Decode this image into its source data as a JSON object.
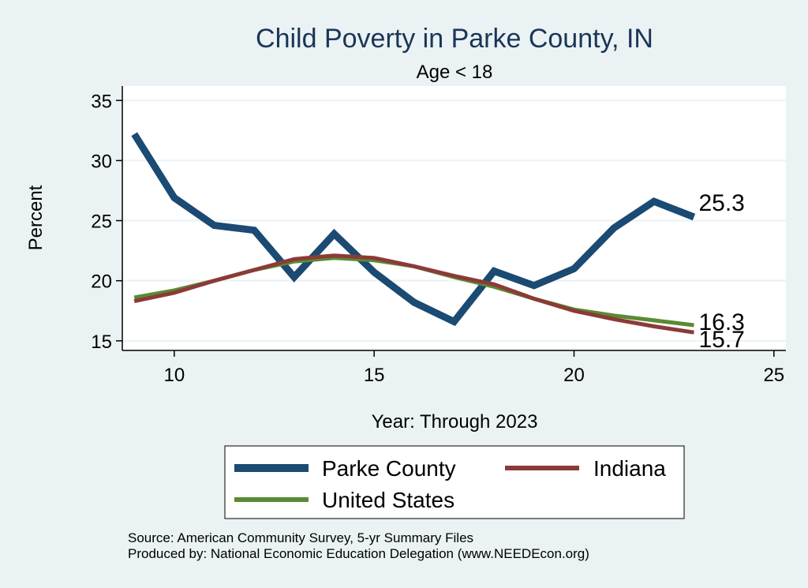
{
  "chart_data": {
    "type": "line",
    "title": "Child Poverty in Parke County, IN",
    "subtitle": "Age < 18",
    "xlabel": "Year: Through 2023",
    "ylabel": "Percent",
    "xlim": [
      8.7,
      25.3
    ],
    "ylim": [
      14.2,
      36.2
    ],
    "xticks": [
      10,
      15,
      20,
      25
    ],
    "yticks": [
      15,
      20,
      25,
      30,
      35
    ],
    "grid": true,
    "legend_position": "bottom",
    "x": [
      9,
      10,
      11,
      12,
      13,
      14,
      15,
      16,
      17,
      18,
      19,
      20,
      21,
      22,
      23
    ],
    "series": [
      {
        "name": "Parke County",
        "color": "#1b4a72",
        "width": 9,
        "values": [
          32.2,
          26.9,
          24.6,
          24.2,
          20.3,
          23.9,
          20.7,
          18.2,
          16.6,
          20.8,
          19.6,
          21.0,
          24.4,
          26.6,
          25.3
        ],
        "end_label": "25.3"
      },
      {
        "name": "Indiana",
        "color": "#8c3a38",
        "width": 5,
        "values": [
          18.3,
          19.0,
          20.0,
          20.9,
          21.8,
          22.1,
          21.9,
          21.2,
          20.4,
          19.7,
          18.5,
          17.5,
          16.8,
          16.2,
          15.7
        ],
        "end_label": "15.7"
      },
      {
        "name": "United States",
        "color": "#5a8a32",
        "width": 5,
        "values": [
          18.6,
          19.2,
          20.0,
          20.9,
          21.6,
          21.9,
          21.7,
          21.2,
          20.3,
          19.5,
          18.5,
          17.6,
          17.1,
          16.7,
          16.3
        ],
        "end_label": "16.3"
      }
    ]
  },
  "source_lines": [
    "Source: American Community Survey, 5-yr Summary Files",
    "Produced by: National Economic Education Delegation (www.NEEDEcon.org)"
  ]
}
